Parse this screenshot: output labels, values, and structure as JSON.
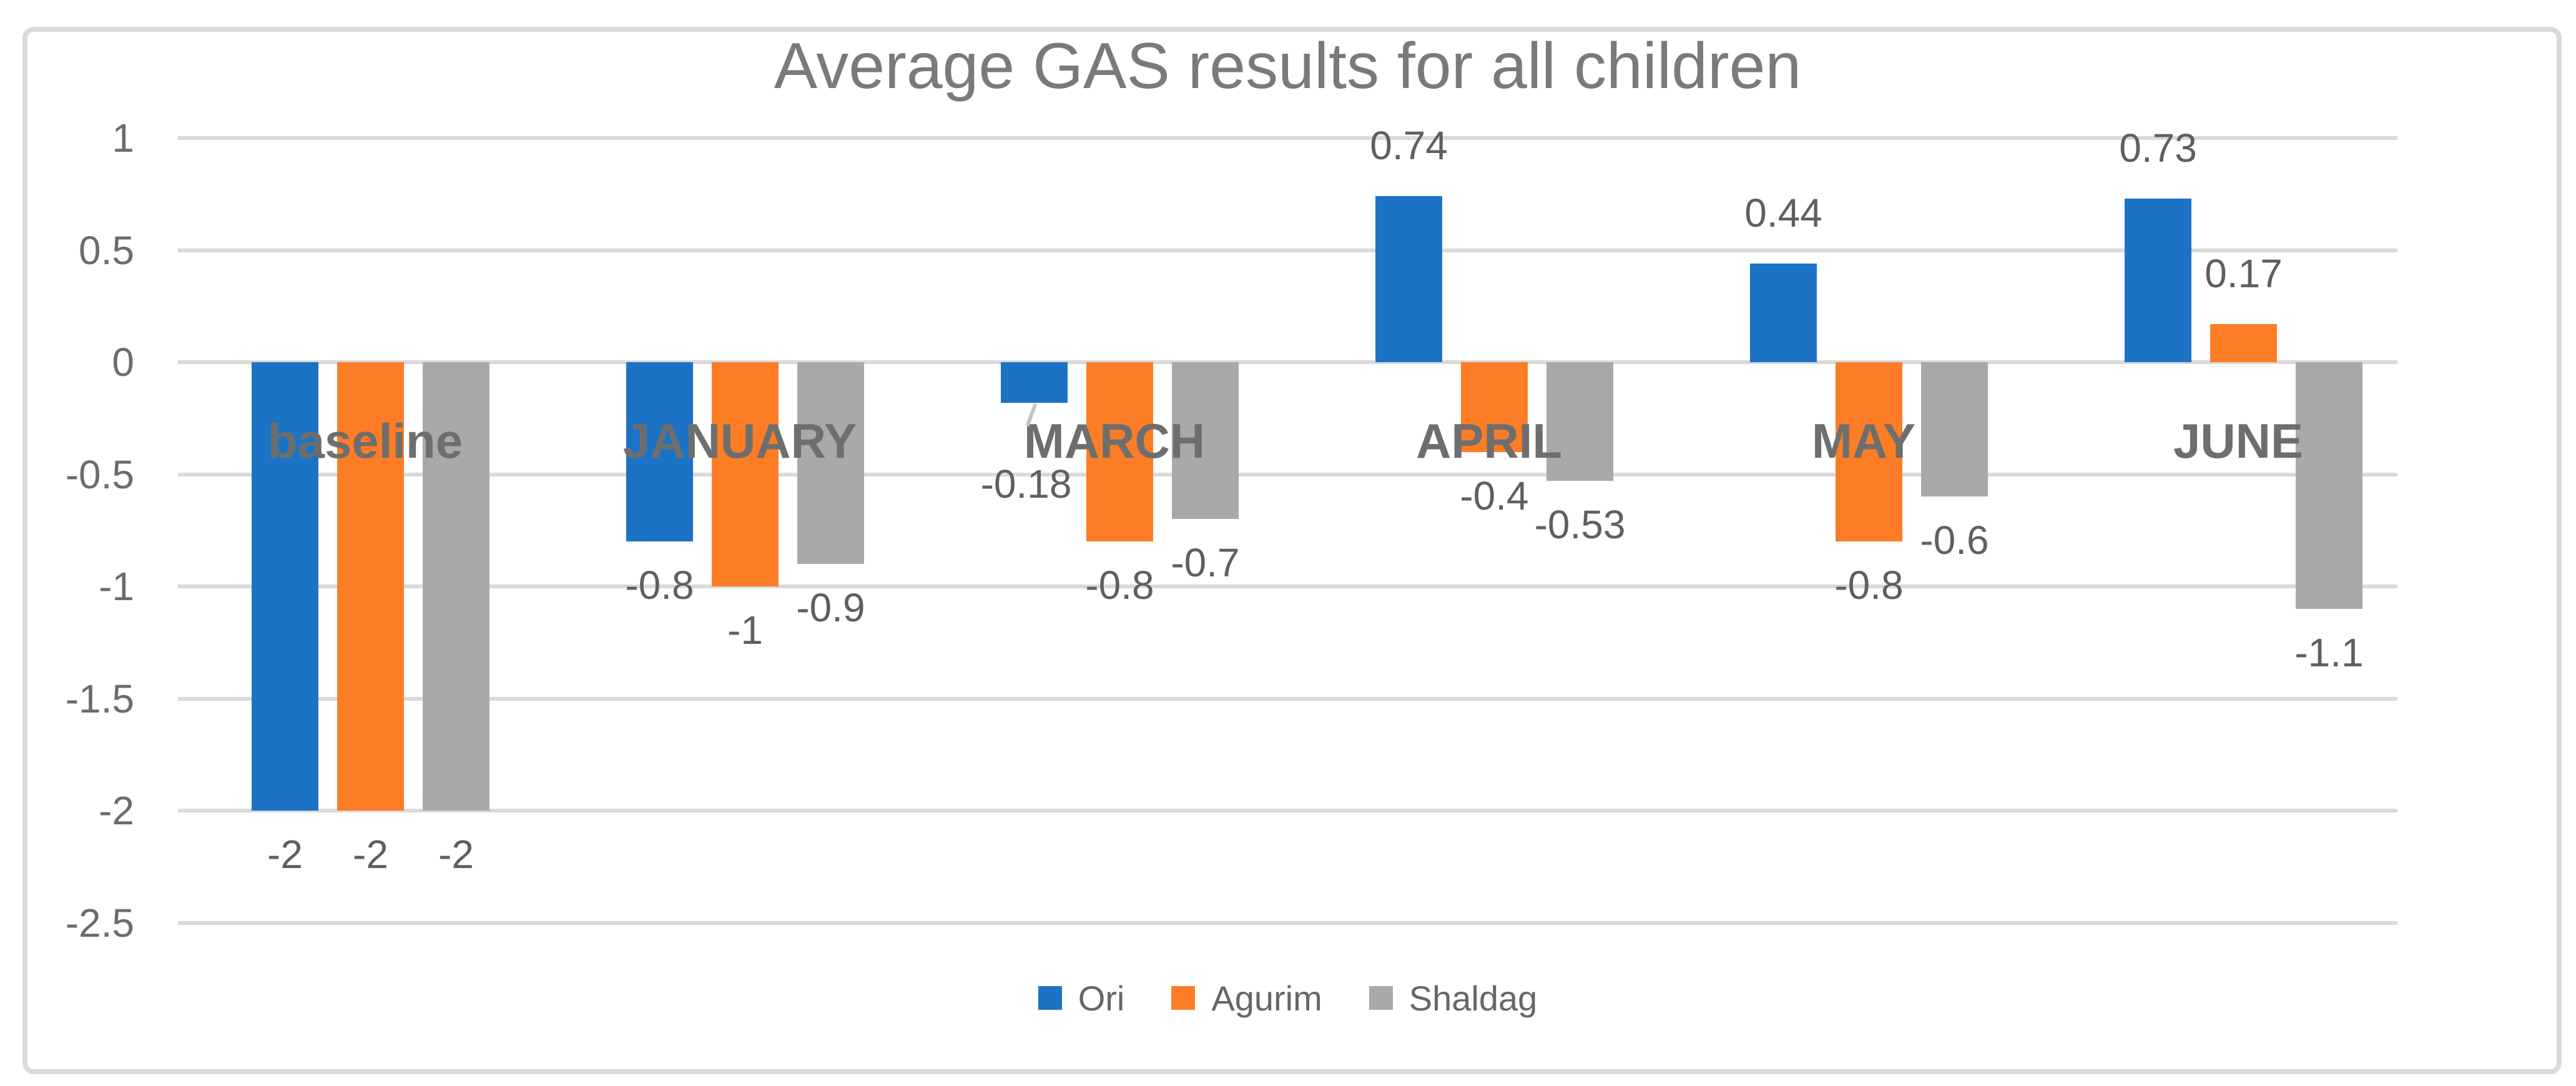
{
  "chart_data": {
    "type": "bar",
    "title": "Average GAS results for all children",
    "categories": [
      "baseline",
      "JANUARY",
      "MARCH",
      "APRIL",
      "MAY",
      "JUNE"
    ],
    "series": [
      {
        "name": "Ori",
        "color": "#1C73C6",
        "values": [
          -2,
          -0.8,
          -0.18,
          0.74,
          0.44,
          0.73
        ],
        "labels": [
          "-2",
          "-0.8",
          "-0.18",
          "0.74",
          "0.44",
          "0.73"
        ]
      },
      {
        "name": "Agurim",
        "color": "#FC7D26",
        "values": [
          -2,
          -1,
          -0.8,
          -0.4,
          -0.8,
          0.17
        ],
        "labels": [
          "-2",
          "-1",
          "-0.8",
          "-0.4",
          "-0.8",
          "0.17"
        ]
      },
      {
        "name": "Shaldag",
        "color": "#A9A9A9",
        "values": [
          -2,
          -0.9,
          -0.7,
          -0.53,
          -0.6,
          -1.1
        ],
        "labels": [
          "-2",
          "-0.9",
          "-0.7",
          "-0.53",
          "-0.6",
          "-1.1"
        ]
      }
    ],
    "ylim": [
      -2.5,
      1
    ],
    "yticks": [
      1,
      0.5,
      0,
      -0.5,
      -1,
      -1.5,
      -2,
      -2.5
    ],
    "ytick_labels": [
      "1",
      "0.5",
      "0",
      "-0.5",
      "-1",
      "-1.5",
      "-2",
      "-2.5"
    ],
    "grid": true,
    "legend_position": "bottom",
    "legend": [
      "Ori",
      "Agurim",
      "Shaldag"
    ],
    "label_overrides": [
      {
        "series": 0,
        "category": 2,
        "dx": -13,
        "dy": 60,
        "leader": true
      }
    ]
  },
  "colors": {
    "background": "#FFFFFF",
    "border": "#DADADA",
    "grid": "#D9D9D9",
    "title_text": "#7A7A7A",
    "category_text": "#6E6E6E",
    "data_label_text": "#5F5F5F",
    "axis_text": "#6C6C6C",
    "legend_text": "#666666",
    "leader_line": "#C3C3C3"
  }
}
